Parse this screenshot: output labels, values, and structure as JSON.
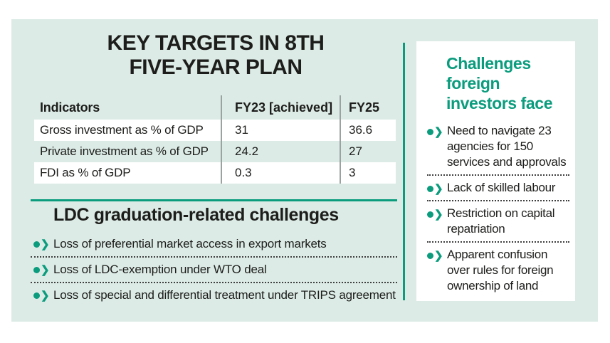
{
  "colors": {
    "teal": "#0a9c7d",
    "mint": "#dcebe6",
    "text": "#1d1d1b",
    "table_divider": "#9aa3a1"
  },
  "icons": {
    "bullet_chevron": "❯"
  },
  "key_targets": {
    "title_lines": [
      "KEY TARGETS IN 8TH",
      "FIVE-YEAR PLAN"
    ]
  },
  "chart_data": {
    "type": "table",
    "title": "KEY TARGETS IN 8TH FIVE-YEAR PLAN",
    "columns": [
      "Indicators",
      "FY23 [achieved]",
      "FY25"
    ],
    "rows": [
      [
        "Gross investment as % of GDP",
        "31",
        "36.6"
      ],
      [
        "Private investment as % of GDP",
        "24.2",
        "27"
      ],
      [
        "FDI as % of GDP",
        "0.3",
        "3"
      ]
    ]
  },
  "ldc_section": {
    "title": "LDC graduation-related challenges",
    "items": [
      "Loss of preferential market access in export markets",
      "Loss of LDC-exemption under WTO deal",
      "Loss of special and differential treatment under TRIPS agreement"
    ]
  },
  "investor_card": {
    "title": "Challenges foreign investors face",
    "items": [
      "Need to navigate 23 agencies for 150 services and approvals",
      "Lack of skilled labour",
      "Restriction on capital repatriation",
      "Apparent confusion over rules for foreign ownership of land"
    ]
  }
}
